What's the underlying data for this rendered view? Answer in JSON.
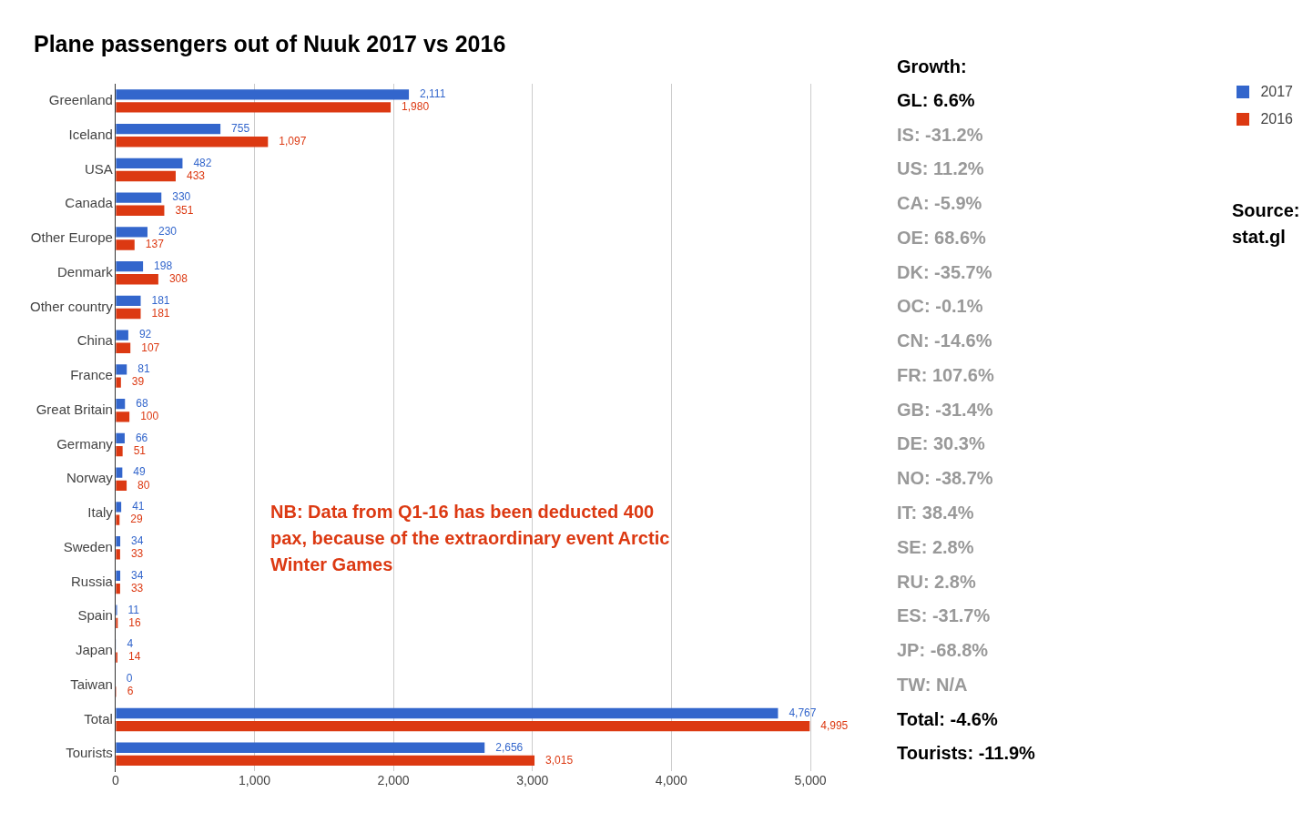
{
  "chart_data": {
    "type": "bar",
    "orientation": "horizontal",
    "title": "Plane passengers out of Nuuk 2017 vs 2016",
    "categories": [
      "Greenland",
      "Iceland",
      "USA",
      "Canada",
      "Other Europe",
      "Denmark",
      "Other country",
      "China",
      "France",
      "Great Britain",
      "Germany",
      "Norway",
      "Italy",
      "Sweden",
      "Russia",
      "Spain",
      "Japan",
      "Taiwan",
      "Total",
      "Tourists"
    ],
    "series": [
      {
        "name": "2017",
        "color": "#3366cc",
        "values": [
          2111,
          755,
          482,
          330,
          230,
          198,
          181,
          92,
          81,
          68,
          66,
          49,
          41,
          34,
          34,
          11,
          4,
          0,
          4767,
          2656
        ],
        "value_labels": [
          "2,111",
          "755",
          "482",
          "330",
          "230",
          "198",
          "181",
          "92",
          "81",
          "68",
          "66",
          "49",
          "41",
          "34",
          "34",
          "11",
          "4",
          "0",
          "4,767",
          "2,656"
        ]
      },
      {
        "name": "2016",
        "color": "#dc3912",
        "values": [
          1980,
          1097,
          433,
          351,
          137,
          308,
          181,
          107,
          39,
          100,
          51,
          80,
          29,
          33,
          33,
          16,
          14,
          6,
          4995,
          3015
        ],
        "value_labels": [
          "1,980",
          "1,097",
          "433",
          "351",
          "137",
          "308",
          "181",
          "107",
          "39",
          "100",
          "51",
          "80",
          "29",
          "33",
          "33",
          "16",
          "14",
          "6",
          "4,995",
          "3,015"
        ]
      }
    ],
    "xlim": [
      0,
      5000
    ],
    "xticks": [
      0,
      {
        "value": 1000,
        "label": "1,000"
      },
      {
        "value": 2000,
        "label": "2,000"
      },
      {
        "value": 3000,
        "label": "3,000"
      },
      {
        "value": 4000,
        "label": "4,000"
      },
      {
        "value": 5000,
        "label": "5,000"
      }
    ],
    "grid": "x",
    "legend": "top right",
    "annotations": [
      "Growth:",
      "GL: 6.6%",
      "IS: -31.2%",
      "US: 11.2%",
      "CA: -5.9%",
      "OE: 68.6%",
      "DK: -35.7%",
      "OC: -0.1%",
      "CN: -14.6%",
      "FR: 107.6%",
      "GB: -31.4%",
      "DE: 30.3%",
      "NO: -38.7%",
      "IT: 38.4%",
      "SE: 2.8%",
      "RU: 2.8%",
      "ES: -31.7%",
      "JP: -68.8%",
      "TW: N/A",
      "Total: -4.6%",
      "Tourists: -11.9%",
      "NB: Data from Q1-16 has been deducted 400 pax, because of the extraordinary event Arctic Winter Games",
      "Source: stat.gl"
    ]
  }
}
